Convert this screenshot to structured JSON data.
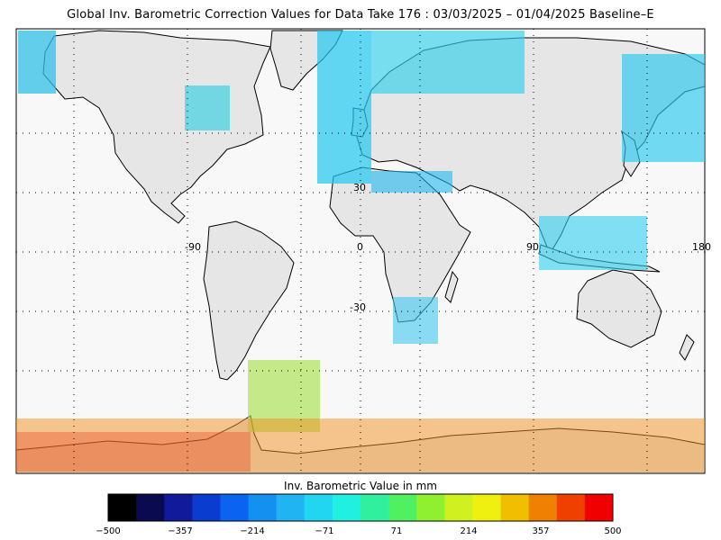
{
  "title": "Global Inv. Barometric Correction Values for Data Take 176 : 03/03/2025 – 01/04/2025 Baseline–E",
  "map": {
    "lat_labels": [
      "30",
      "-30"
    ],
    "lon_labels": [
      "-90",
      "0",
      "90",
      "180"
    ],
    "land_color": "#e6e6e6",
    "ocean_color": "#f8f8f8"
  },
  "colorbar": {
    "title": "Inv. Barometric Value in mm",
    "ticks": [
      "−500",
      "−357",
      "−214",
      "−71",
      "71",
      "214",
      "357",
      "500"
    ],
    "colors": [
      "#000000",
      "#0a0a50",
      "#101a9a",
      "#0a3cd0",
      "#0a64f0",
      "#1490f0",
      "#20b4f0",
      "#20d6f0",
      "#20f0e0",
      "#30f0a0",
      "#50f060",
      "#90f030",
      "#d0f020",
      "#f0f010",
      "#f0c000",
      "#f08000",
      "#f04000",
      "#f00000"
    ]
  }
}
